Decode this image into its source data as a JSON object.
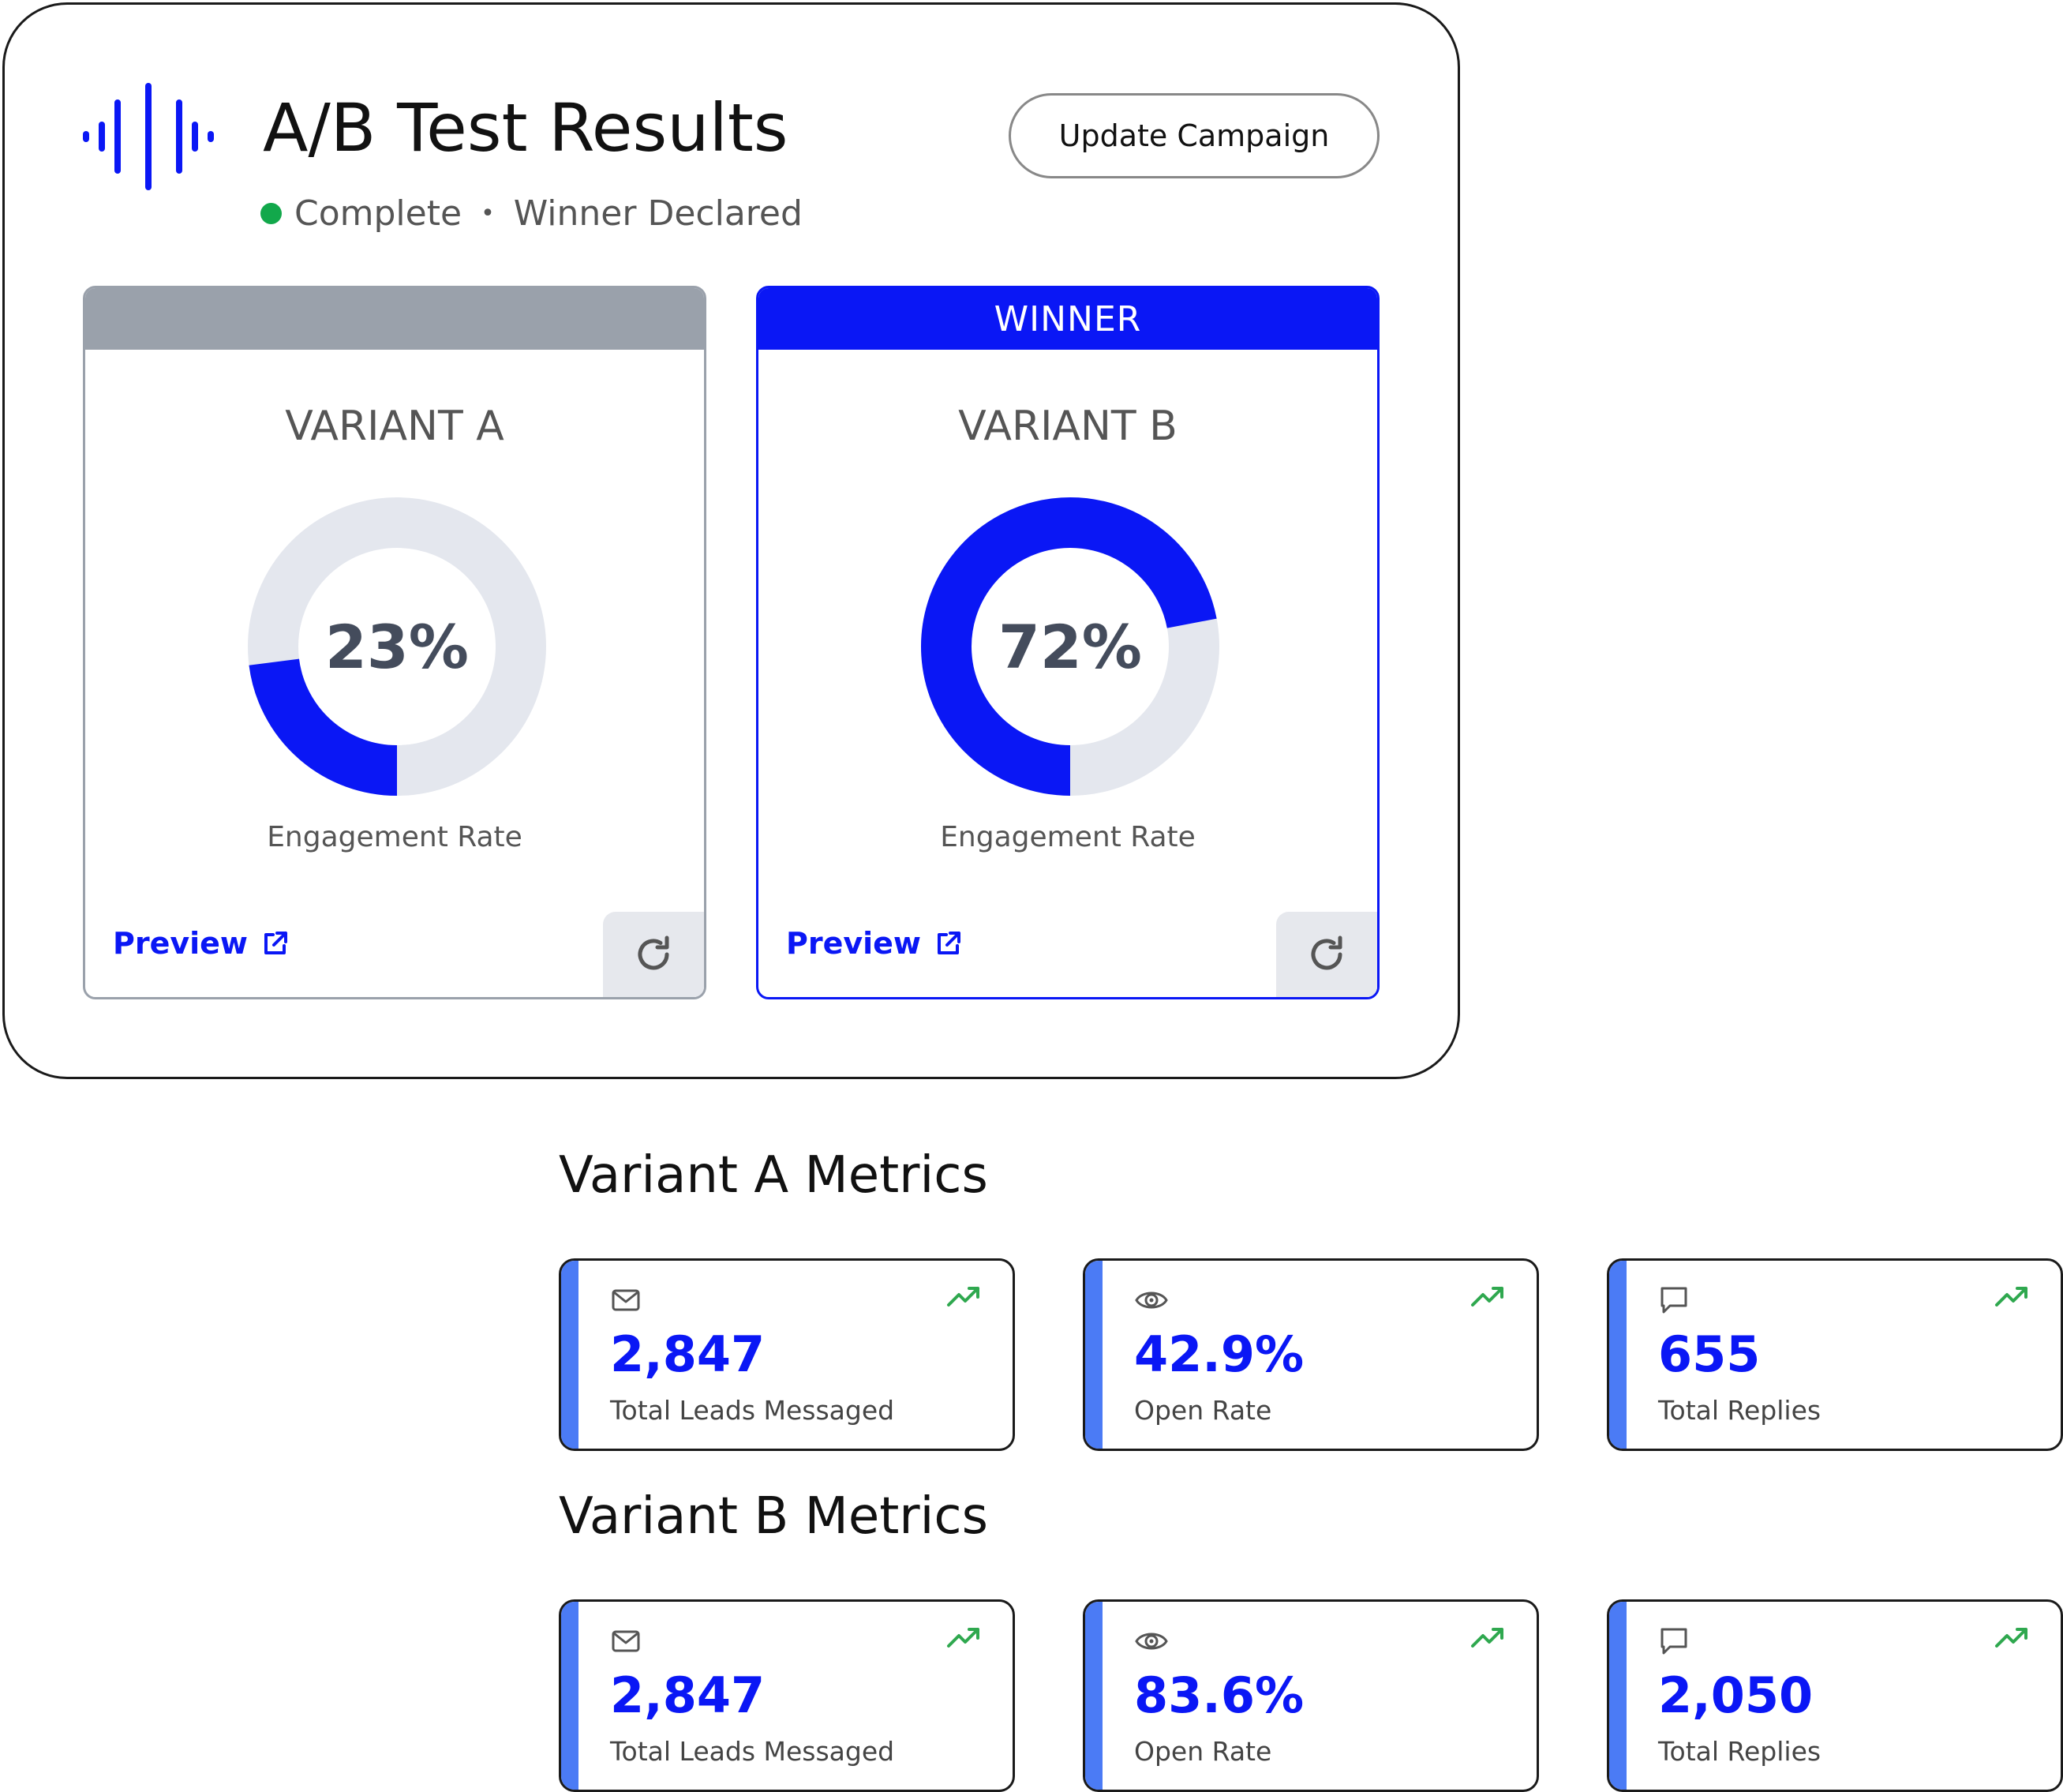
{
  "header": {
    "title": "A/B Test Results",
    "status": "Complete",
    "status_separator": "•",
    "result": "Winner Declared",
    "update_button": "Update Campaign"
  },
  "colors": {
    "accent": "#0a17f5",
    "success": "#12a84b",
    "neutral_band": "#9aa1ab",
    "donut_track": "#e4e7ee",
    "metric_accent": "#4b7bf5",
    "trend": "#2fa84f"
  },
  "variants": [
    {
      "band_label": "",
      "name": "VARIANT A",
      "engagement_value": 23,
      "engagement_text": "23%",
      "engagement_label": "Engagement Rate",
      "preview_label": "Preview",
      "preview_icon": "external-link-icon",
      "refresh_icon": "refresh-icon"
    },
    {
      "band_label": "WINNER",
      "name": "VARIANT B",
      "engagement_value": 72,
      "engagement_text": "72%",
      "engagement_label": "Engagement Rate",
      "preview_label": "Preview",
      "preview_icon": "external-link-icon",
      "refresh_icon": "refresh-icon"
    }
  ],
  "metrics": [
    {
      "title": "Variant A Metrics",
      "cards": [
        {
          "icon": "mail-icon",
          "trend_icon": "trend-up-icon",
          "value": "2,847",
          "label": "Total Leads Messaged"
        },
        {
          "icon": "eye-icon",
          "trend_icon": "trend-up-icon",
          "value": "42.9%",
          "label": "Open Rate"
        },
        {
          "icon": "chat-icon",
          "trend_icon": "trend-up-icon",
          "value": "655",
          "label": "Total Replies"
        }
      ]
    },
    {
      "title": "Variant B Metrics",
      "cards": [
        {
          "icon": "mail-icon",
          "trend_icon": "trend-up-icon",
          "value": "2,847",
          "label": "Total Leads Messaged"
        },
        {
          "icon": "eye-icon",
          "trend_icon": "trend-up-icon",
          "value": "83.6%",
          "label": "Open Rate"
        },
        {
          "icon": "chat-icon",
          "trend_icon": "trend-up-icon",
          "value": "2,050",
          "label": "Total Replies"
        }
      ]
    }
  ]
}
